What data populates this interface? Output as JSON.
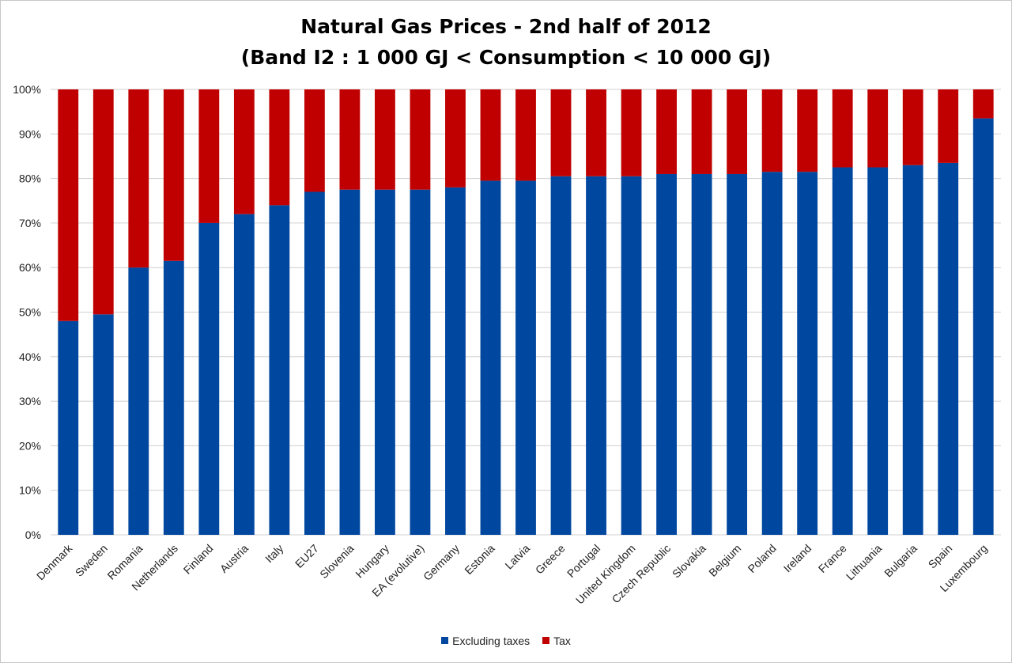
{
  "chart_data": {
    "type": "bar",
    "stacked": true,
    "title": "Natural Gas Prices - 2nd half of 2012",
    "subtitle": "(Band I2 : 1 000 GJ < Consumption < 10 000 GJ)",
    "xlabel": "",
    "ylabel": "",
    "ylim": [
      0,
      100
    ],
    "y_ticks": [
      "0%",
      "10%",
      "20%",
      "30%",
      "40%",
      "50%",
      "60%",
      "70%",
      "80%",
      "90%",
      "100%"
    ],
    "grid": true,
    "legend_position": "bottom",
    "categories": [
      "Denmark",
      "Sweden",
      "Romania",
      "Netherlands",
      "Finland",
      "Austria",
      "Italy",
      "EU27",
      "Slovenia",
      "Hungary",
      "EA (evolutive)",
      "Germany",
      "Estonia",
      "Latvia",
      "Greece",
      "Portugal",
      "United Kingdom",
      "Czech Republic",
      "Slovakia",
      "Belgium",
      "Poland",
      "Ireland",
      "France",
      "Lithuania",
      "Bulgaria",
      "Spain",
      "Luxembourg"
    ],
    "series": [
      {
        "name": "Excluding taxes",
        "color": "#0047a0",
        "values": [
          48,
          49.5,
          60,
          61.5,
          70,
          72,
          74,
          77,
          77.5,
          77.5,
          77.5,
          78,
          79.5,
          79.5,
          80.5,
          80.5,
          80.5,
          81,
          81,
          81,
          81.5,
          81.5,
          82.5,
          82.5,
          83,
          83.5,
          93.5
        ]
      },
      {
        "name": "Tax",
        "color": "#c00000",
        "values": [
          52,
          50.5,
          40,
          38.5,
          30,
          28,
          26,
          23,
          22.5,
          22.5,
          22.5,
          22,
          20.5,
          20.5,
          19.5,
          19.5,
          19.5,
          19,
          19,
          19,
          18.5,
          18.5,
          17.5,
          17.5,
          17,
          16.5,
          6.5
        ]
      }
    ]
  }
}
